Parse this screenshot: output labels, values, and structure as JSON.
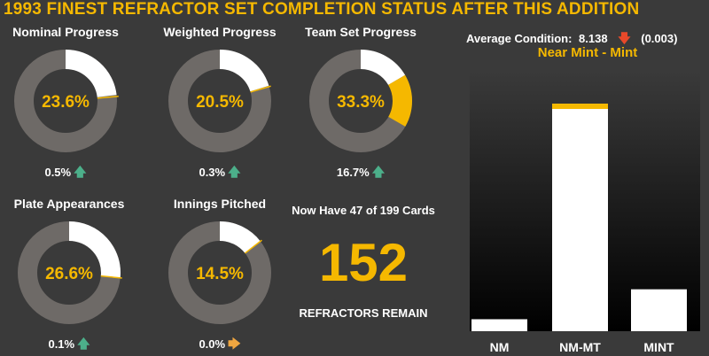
{
  "title": "1993 FINEST REFRACTOR SET COMPLETION STATUS AFTER THIS ADDITION",
  "donuts": [
    {
      "label": "Nominal Progress",
      "percent": 23.6,
      "value_text": "23.6%",
      "change": 0.5,
      "change_text": "0.5%",
      "trend": "up"
    },
    {
      "label": "Weighted Progress",
      "percent": 20.5,
      "value_text": "20.5%",
      "change": 0.3,
      "change_text": "0.3%",
      "trend": "up"
    },
    {
      "label": "Team Set Progress",
      "percent": 33.3,
      "value_text": "33.3%",
      "change": 16.7,
      "change_text": "16.7%",
      "trend": "up"
    },
    {
      "label": "Plate Appearances",
      "percent": 26.6,
      "value_text": "26.6%",
      "change": 0.1,
      "change_text": "0.1%",
      "trend": "up"
    },
    {
      "label": "Innings Pitched",
      "percent": 14.5,
      "value_text": "14.5%",
      "change": 0.0,
      "change_text": "0.0%",
      "trend": "flat"
    }
  ],
  "cards": {
    "header": "Now Have 47 of 199 Cards",
    "remaining": "152",
    "remaining_label": "REFRACTORS REMAIN"
  },
  "condition": {
    "label": "Average Condition:",
    "value": "8.138",
    "trend": "down",
    "change": "(0.003)",
    "grade": "Near Mint - Mint"
  },
  "chart_data": {
    "type": "bar",
    "categories": [
      "NM",
      "NM-MT",
      "MINT"
    ],
    "values": [
      2,
      38,
      7
    ],
    "highlight": "NM-MT",
    "ylim": [
      0,
      40
    ],
    "grid": false,
    "xlabel": "",
    "ylabel": ""
  },
  "colors": {
    "accent": "#f5b800",
    "ring": "#6e6a67",
    "fill": "#ffffff",
    "up": "#4caf8a",
    "down": "#e8492a",
    "flat": "#f0a640"
  }
}
